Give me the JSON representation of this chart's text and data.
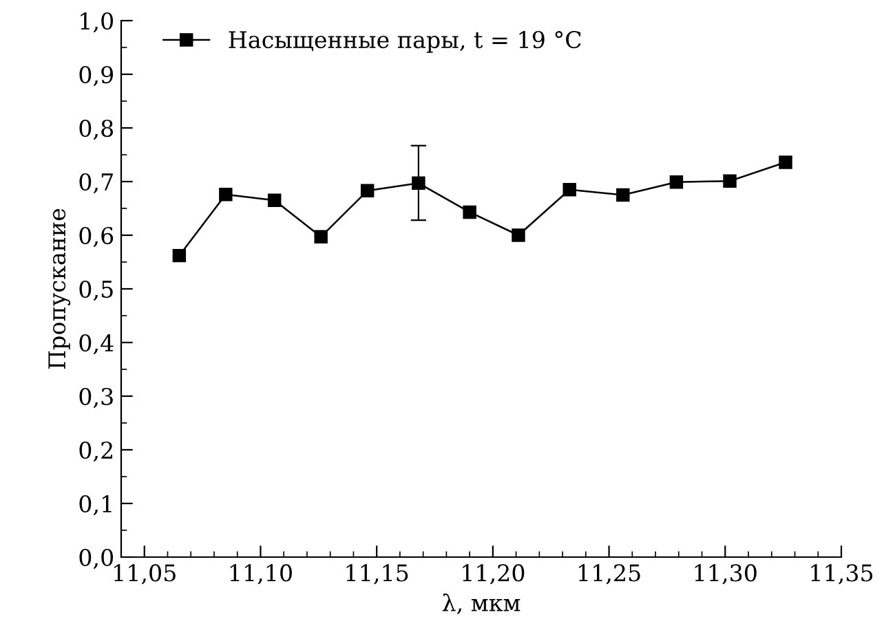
{
  "chart_data": {
    "type": "line",
    "xlabel": "λ, мкм",
    "ylabel": "Пропускание",
    "xlim": [
      11.04,
      11.35
    ],
    "xticks": [
      {
        "value": 11.05,
        "label": "11,05"
      },
      {
        "value": 11.1,
        "label": "11,10"
      },
      {
        "value": 11.15,
        "label": "11,15"
      },
      {
        "value": 11.2,
        "label": "11,20"
      },
      {
        "value": 11.25,
        "label": "11,25"
      },
      {
        "value": 11.3,
        "label": "11,30"
      },
      {
        "value": 11.35,
        "label": "11,35"
      }
    ],
    "ylim": [
      0,
      1
    ],
    "yticks": [
      {
        "value": 0,
        "label": "0,0"
      },
      {
        "value": 0.1,
        "label": "0,1"
      },
      {
        "value": 0.2,
        "label": "0,2"
      },
      {
        "value": 0.3,
        "label": "0,3"
      },
      {
        "value": 0.4,
        "label": "0,4"
      },
      {
        "value": 0.5,
        "label": "0,5"
      },
      {
        "value": 0.6,
        "label": "0,6"
      },
      {
        "value": 0.7,
        "label": "0,7"
      },
      {
        "value": 0.8,
        "label": "0,8"
      },
      {
        "value": 0.9,
        "label": "0,9"
      },
      {
        "value": 1,
        "label": "1,0"
      }
    ],
    "marker": "square",
    "line_style": "solid",
    "legend": "top left",
    "grid": false,
    "series": [
      {
        "name": "Насыщенные пары, t = 19 °C",
        "color": "#000000",
        "x": [
          11.065,
          11.085,
          11.106,
          11.126,
          11.146,
          11.168,
          11.19,
          11.211,
          11.233,
          11.256,
          11.279,
          11.302,
          11.326
        ],
        "values": [
          0.562,
          0.676,
          0.665,
          0.597,
          0.683,
          0.697,
          0.643,
          0.6,
          0.685,
          0.675,
          0.699,
          0.701,
          0.736
        ],
        "errors": [
          null,
          null,
          null,
          null,
          null,
          [
            0.628,
            0.767
          ],
          null,
          null,
          null,
          null,
          null,
          null,
          null
        ]
      }
    ]
  }
}
